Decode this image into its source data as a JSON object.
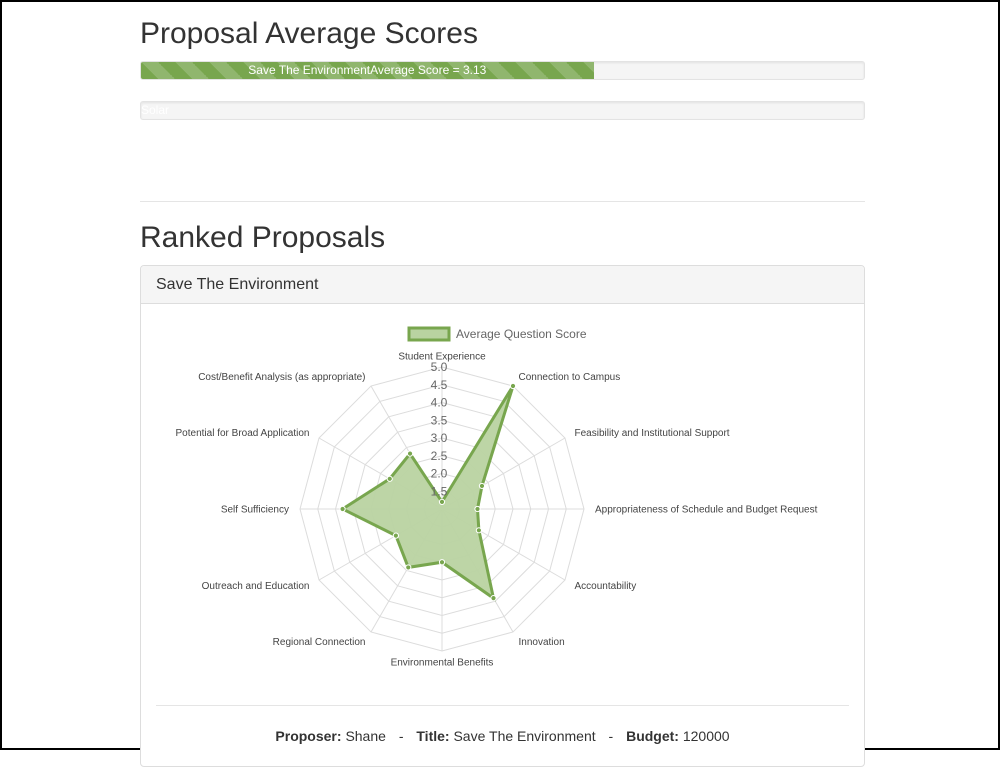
{
  "page": {
    "title_scores": "Proposal Average Scores",
    "title_ranked": "Ranked Proposals"
  },
  "progress_bars": [
    {
      "label": "Save The EnvironmentAverage Score = 3.13",
      "value": 3.13,
      "max": 5,
      "color": "#78a64e"
    },
    {
      "label": "Solar",
      "value": 0,
      "max": 5
    }
  ],
  "panel": {
    "heading": "Save The Environment",
    "proposer_label": "Proposer:",
    "proposer": "Shane",
    "title_label": "Title:",
    "title": "Save The Environment",
    "budget_label": "Budget:",
    "budget": "120000",
    "separator": "-"
  },
  "chart_data": {
    "type": "radar",
    "legend": "Average Question Score",
    "legend_position": "top",
    "categories": [
      "Student Experience",
      "Connection to Campus",
      "Feasibility and Institutional Support",
      "Appropriateness of Schedule and Budget Request",
      "Accountability",
      "Innovation",
      "Environmental Benefits",
      "Regional Connection",
      "Outreach and Education",
      "Self Sufficiency",
      "Potential for Broad Application",
      "Cost/Benefit Analysis (as appropriate)"
    ],
    "values": [
      1.2,
      5.0,
      2.3,
      2.0,
      2.2,
      3.9,
      2.5,
      2.9,
      2.5,
      3.8,
      2.7,
      2.8
    ],
    "r_min": 1.0,
    "r_max": 5.0,
    "ticks": [
      "1.5",
      "2.0",
      "2.5",
      "3.0",
      "3.5",
      "4.0",
      "4.5",
      "5.0"
    ],
    "fill_color": "#b9d3a1",
    "line_color": "#78a64e",
    "grid": true
  }
}
